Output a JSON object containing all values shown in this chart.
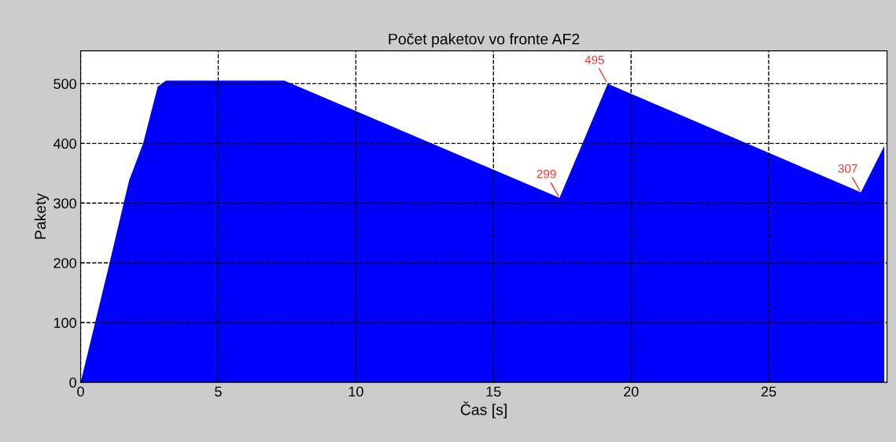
{
  "chart_data": {
    "type": "area",
    "title": "Počet paketov vo fronte AF2",
    "xlabel": "Čas [s]",
    "ylabel": "Pakety",
    "x": [
      0,
      0.5,
      1.0,
      1.76,
      2.27,
      2.8,
      3.1,
      7.4,
      17.4,
      19.15,
      28.35,
      29.2
    ],
    "series": [
      {
        "color": "#0000ff",
        "values": [
          0,
          95,
          190,
          338,
          400,
          495,
          505,
          505,
          309,
          500,
          318,
          396
        ]
      }
    ],
    "xlim": [
      0,
      29.3
    ],
    "ylim": [
      0,
      555
    ],
    "xticks": [
      0,
      5,
      10,
      15,
      20,
      25
    ],
    "yticks": [
      0,
      100,
      200,
      300,
      400,
      500
    ],
    "grid": true,
    "line_style": "dashed",
    "annotations": [
      {
        "text": "299",
        "x": 17.4,
        "y": 309
      },
      {
        "text": "495",
        "x": 19.15,
        "y": 500
      },
      {
        "text": "307",
        "x": 28.35,
        "y": 318
      }
    ]
  }
}
